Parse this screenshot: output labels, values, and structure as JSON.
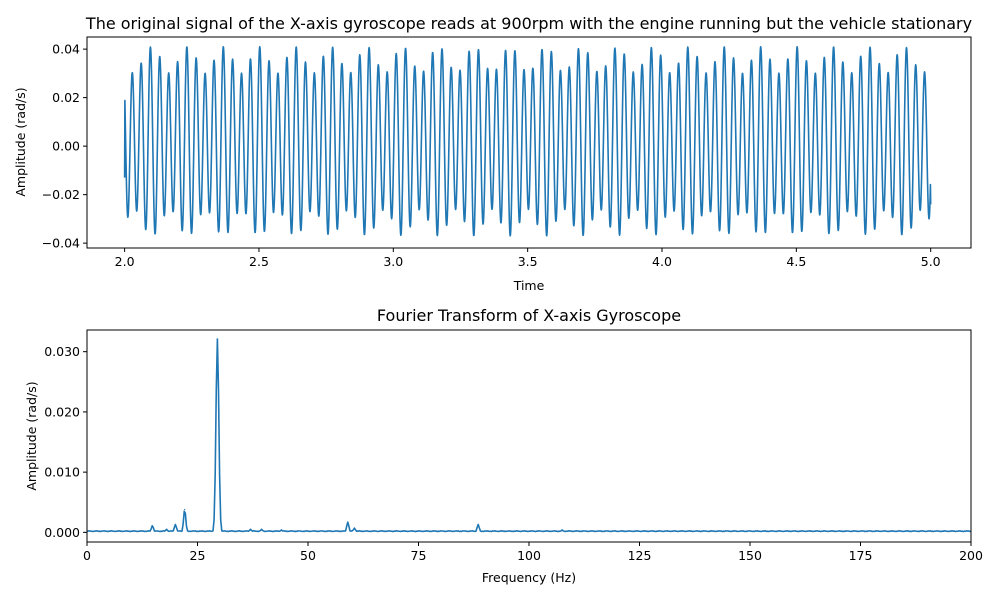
{
  "chart_data": [
    {
      "type": "line",
      "title": "The original signal of the X-axis gyroscope reads at 900rpm with the engine running but the vehicle stationary",
      "xlabel": "Time",
      "ylabel": "Amplitude (rad/s)",
      "xlim": [
        1.86,
        5.15
      ],
      "ylim": [
        -0.042,
        0.045
      ],
      "xticks": [
        2.0,
        2.5,
        3.0,
        3.5,
        4.0,
        4.5,
        5.0
      ],
      "xtick_labels": [
        "2.0",
        "2.5",
        "3.0",
        "3.5",
        "4.0",
        "4.5",
        "5.0"
      ],
      "yticks": [
        -0.04,
        -0.02,
        0.0,
        0.02,
        0.04
      ],
      "ytick_labels": [
        "−0.04",
        "−0.02",
        "0.00",
        "0.02",
        "0.04"
      ],
      "grid": false,
      "series": [
        {
          "x_start": 2.0,
          "x_end": 5.0,
          "dominant_frequency_hz": 29.5,
          "secondary_frequency_hz": 22.0,
          "amplitude_range": [
            -0.037,
            0.041
          ],
          "start_value": -0.013,
          "end_value": -0.024,
          "color": "#1f77b4"
        }
      ]
    },
    {
      "type": "line",
      "title": "Fourier Transform of X-axis Gyroscope",
      "xlabel": "Frequency (Hz)",
      "ylabel": "Amplitude (rad/s)",
      "xlim": [
        0,
        200
      ],
      "ylim": [
        -0.0016,
        0.0336
      ],
      "xticks": [
        0,
        25,
        50,
        75,
        100,
        125,
        150,
        175,
        200
      ],
      "xtick_labels": [
        "0",
        "25",
        "50",
        "75",
        "100",
        "125",
        "150",
        "175",
        "200"
      ],
      "yticks": [
        0.0,
        0.01,
        0.02,
        0.03
      ],
      "ytick_labels": [
        "0.000",
        "0.010",
        "0.020",
        "0.030"
      ],
      "grid": false,
      "baseline": 0.0002,
      "peaks": [
        {
          "x": 14.8,
          "y": 0.0011
        },
        {
          "x": 18.0,
          "y": 0.0005
        },
        {
          "x": 20.0,
          "y": 0.0013
        },
        {
          "x": 22.1,
          "y": 0.0038
        },
        {
          "x": 29.5,
          "y": 0.0321
        },
        {
          "x": 37.0,
          "y": 0.0005
        },
        {
          "x": 39.5,
          "y": 0.0005
        },
        {
          "x": 44.0,
          "y": 0.0004
        },
        {
          "x": 59.0,
          "y": 0.0017
        },
        {
          "x": 60.5,
          "y": 0.0007
        },
        {
          "x": 88.5,
          "y": 0.0013
        },
        {
          "x": 107.5,
          "y": 0.0004
        }
      ],
      "color": "#1f77b4"
    }
  ]
}
